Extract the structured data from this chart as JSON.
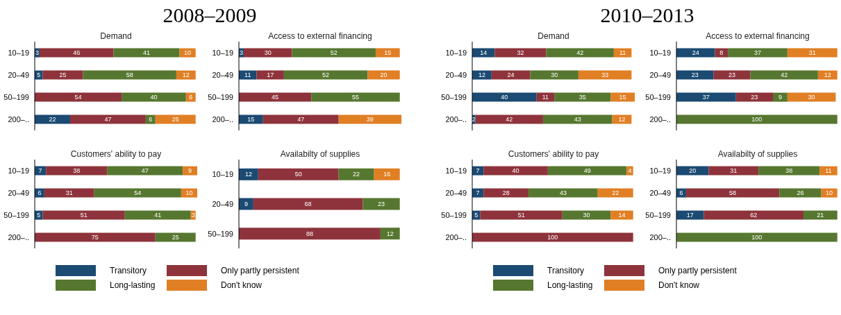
{
  "chart_data": [
    {
      "type": "bar",
      "orientation": "horizontal",
      "stacked": true,
      "title": "Demand",
      "annotations": [
        "2008–2009"
      ],
      "categories": [
        "10–19",
        "20–49",
        "50–199",
        "200–.."
      ],
      "xlim": [
        0,
        101
      ],
      "tick_labels": "y",
      "series": [
        {
          "color": "#1b4a72",
          "values": [
            3,
            5,
            0,
            22
          ],
          "value_labels": [
            "3",
            "5",
            null,
            "22"
          ]
        },
        {
          "color": "#8e333b",
          "values": [
            46,
            25,
            54,
            47
          ],
          "value_labels": [
            "46",
            "25",
            "54",
            "47"
          ]
        },
        {
          "color": "#56772f",
          "values": [
            41,
            58,
            40,
            6
          ],
          "value_labels": [
            "41",
            "58",
            "40",
            "6"
          ]
        },
        {
          "color": "#e07f24",
          "values": [
            10,
            12,
            6,
            25
          ],
          "value_labels": [
            "10",
            "12",
            "6",
            "25"
          ]
        }
      ]
    },
    {
      "type": "bar",
      "orientation": "horizontal",
      "stacked": true,
      "title": "Access to external financing",
      "categories": [
        "10–19",
        "20–49",
        "50–199",
        "200–.."
      ],
      "xlim": [
        0,
        101
      ],
      "tick_labels": "y",
      "data_labels": true,
      "series": [
        {
          "color": "#1b4a72",
          "values": [
            3,
            11,
            null,
            15
          ]
        },
        {
          "color": "#8e333b",
          "values": [
            30,
            17,
            45,
            47
          ]
        },
        {
          "color": "#56772f",
          "values": [
            52,
            52,
            55,
            null
          ]
        },
        {
          "color": "#e07f24",
          "values": [
            15,
            20,
            null,
            39
          ]
        }
      ]
    },
    {
      "type": "bar",
      "orientation": "horizontal",
      "stacked": true,
      "title": "Customers' ability to pay",
      "legend": "bottom",
      "categories": [
        "10–19",
        "20–49",
        "50–199",
        "200–.."
      ],
      "xlim": [
        0,
        101
      ],
      "tick_labels": "y",
      "data_labels": true,
      "series": [
        {
          "name": "Transitory",
          "color": "#1b4a72",
          "values": [
            7,
            6,
            5,
            null
          ]
        },
        {
          "name": "Only partly persistent",
          "color": "#8e333b",
          "values": [
            38,
            31,
            51,
            75
          ]
        },
        {
          "name": "Long-lasting",
          "color": "#56772f",
          "values": [
            47,
            54,
            41,
            25
          ]
        },
        {
          "name": "Don't know",
          "color": "#e07f24",
          "values": [
            9,
            10,
            3,
            null
          ]
        }
      ]
    },
    {
      "type": "bar",
      "orientation": "horizontal",
      "stacked": true,
      "title": "Availabilty of supplies",
      "categories": [
        "10–19",
        "20–49",
        "50–199"
      ],
      "xlim": [
        0,
        101
      ],
      "tick_labels": "y",
      "data_labels": true,
      "series": [
        {
          "color": "#1b4a72",
          "values": [
            12,
            9,
            null
          ]
        },
        {
          "color": "#8e333b",
          "values": [
            50,
            68,
            88
          ]
        },
        {
          "color": "#56772f",
          "values": [
            22,
            23,
            12
          ]
        },
        {
          "color": "#e07f24",
          "values": [
            16,
            null,
            null
          ]
        }
      ]
    },
    {
      "type": "bar",
      "orientation": "horizontal",
      "stacked": true,
      "title": "Demand",
      "annotations": [
        "2010–2013"
      ],
      "categories": [
        "10–19",
        "20–49",
        "50–199",
        "200–.."
      ],
      "xlim": [
        0,
        101
      ],
      "tick_labels": "y",
      "data_labels": true,
      "series": [
        {
          "color": "#1b4a72",
          "values": [
            14,
            12,
            40,
            2
          ]
        },
        {
          "color": "#8e333b",
          "values": [
            32,
            24,
            11,
            42
          ]
        },
        {
          "color": "#56772f",
          "values": [
            42,
            30,
            35,
            43
          ]
        },
        {
          "color": "#e07f24",
          "values": [
            11,
            33,
            15,
            12
          ]
        }
      ]
    },
    {
      "type": "bar",
      "orientation": "horizontal",
      "stacked": true,
      "title": "Access to external financing",
      "categories": [
        "10–19",
        "20–49",
        "50–199",
        "200–.."
      ],
      "xlim": [
        0,
        101
      ],
      "tick_labels": "y",
      "data_labels": true,
      "series": [
        {
          "color": "#1b4a72",
          "values": [
            24,
            23,
            37,
            null
          ]
        },
        {
          "color": "#8e333b",
          "values": [
            8,
            23,
            23,
            null
          ]
        },
        {
          "color": "#56772f",
          "values": [
            37,
            42,
            9,
            100
          ]
        },
        {
          "color": "#e07f24",
          "values": [
            31,
            12,
            30,
            null
          ]
        }
      ]
    },
    {
      "type": "bar",
      "orientation": "horizontal",
      "stacked": true,
      "title": "Customers' ability to pay",
      "legend": "bottom",
      "categories": [
        "10–19",
        "20–49",
        "50–199",
        "200–.."
      ],
      "xlim": [
        0,
        101
      ],
      "tick_labels": "y",
      "data_labels": true,
      "series": [
        {
          "name": "Transitory",
          "color": "#1b4a72",
          "values": [
            7,
            7,
            5,
            null
          ]
        },
        {
          "name": "Only partly persistent",
          "color": "#8e333b",
          "values": [
            40,
            28,
            51,
            100
          ]
        },
        {
          "name": "Long-lasting",
          "color": "#56772f",
          "values": [
            49,
            43,
            30,
            null
          ]
        },
        {
          "name": "Don't know",
          "color": "#e07f24",
          "values": [
            4,
            22,
            14,
            null
          ]
        }
      ]
    },
    {
      "type": "bar",
      "orientation": "horizontal",
      "stacked": true,
      "title": "Availabilty of supplies",
      "categories": [
        "10–19",
        "20–49",
        "50–199",
        "200–.."
      ],
      "xlim": [
        0,
        101
      ],
      "tick_labels": "y",
      "data_labels": true,
      "series": [
        {
          "color": "#1b4a72",
          "values": [
            20,
            6,
            17,
            null
          ]
        },
        {
          "color": "#8e333b",
          "values": [
            31,
            58,
            62,
            null
          ]
        },
        {
          "color": "#56772f",
          "values": [
            38,
            26,
            21,
            100
          ]
        },
        {
          "color": "#e07f24",
          "values": [
            11,
            10,
            null,
            null
          ]
        }
      ]
    }
  ]
}
